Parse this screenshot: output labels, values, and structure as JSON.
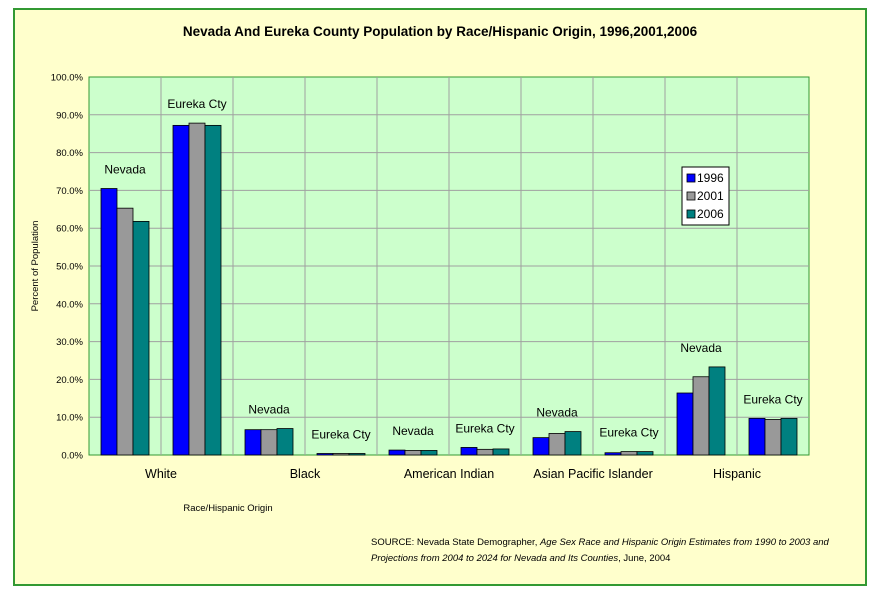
{
  "chart_data": {
    "type": "bar",
    "title": "Nevada And Eureka County Population by Race/Hispanic Origin, 1996,2001,2006",
    "xlabel": "Race/Hispanic Origin",
    "ylabel": "Percent of Population",
    "ylim": [
      0,
      100
    ],
    "ytick_labels": [
      "0.0%",
      "10.0%",
      "20.0%",
      "30.0%",
      "40.0%",
      "50.0%",
      "60.0%",
      "70.0%",
      "80.0%",
      "90.0%",
      "100.0%"
    ],
    "grid": true,
    "legend_position": "right",
    "category_labels": [
      "White",
      "Black",
      "American Indian",
      "Asian Pacific Islander",
      "Hispanic"
    ],
    "groups": [
      {
        "category": "White",
        "label": "Nevada"
      },
      {
        "category": "White",
        "label": "Eureka Cty"
      },
      {
        "category": "Black",
        "label": "Nevada"
      },
      {
        "category": "Black",
        "label": "Eureka Cty"
      },
      {
        "category": "American Indian",
        "label": "Nevada"
      },
      {
        "category": "American Indian",
        "label": "Eureka Cty"
      },
      {
        "category": "Asian Pacific Islander",
        "label": "Nevada"
      },
      {
        "category": "Asian Pacific Islander",
        "label": "Eureka Cty"
      },
      {
        "category": "Hispanic",
        "label": "Nevada"
      },
      {
        "category": "Hispanic",
        "label": "Eureka Cty"
      }
    ],
    "series": [
      {
        "name": "1996",
        "color": "#0000ff",
        "values": [
          70.5,
          87.2,
          6.7,
          0.4,
          1.3,
          2.0,
          4.6,
          0.6,
          16.4,
          9.7
        ]
      },
      {
        "name": "2001",
        "color": "#999999",
        "values": [
          65.3,
          87.8,
          6.7,
          0.4,
          1.2,
          1.5,
          5.7,
          0.9,
          20.7,
          9.4
        ]
      },
      {
        "name": "2006",
        "color": "#008080",
        "values": [
          61.8,
          87.2,
          7.0,
          0.4,
          1.2,
          1.6,
          6.2,
          0.9,
          23.3,
          9.7
        ]
      }
    ]
  },
  "source_note": {
    "prefix": "SOURCE: Nevada State Demographer, ",
    "italic": "Age Sex Race and Hispanic Origin Estimates from  1990 to 2003 and Projections from  2004 to 2024 for Nevada and Its Counties",
    "suffix": ", June, 2004"
  },
  "colors": {
    "frame_background": "#ffffcc",
    "frame_border": "#339933",
    "plot_background": "#ccffcc",
    "plot_border": "#339933",
    "gridline": "#a0a0a0"
  }
}
